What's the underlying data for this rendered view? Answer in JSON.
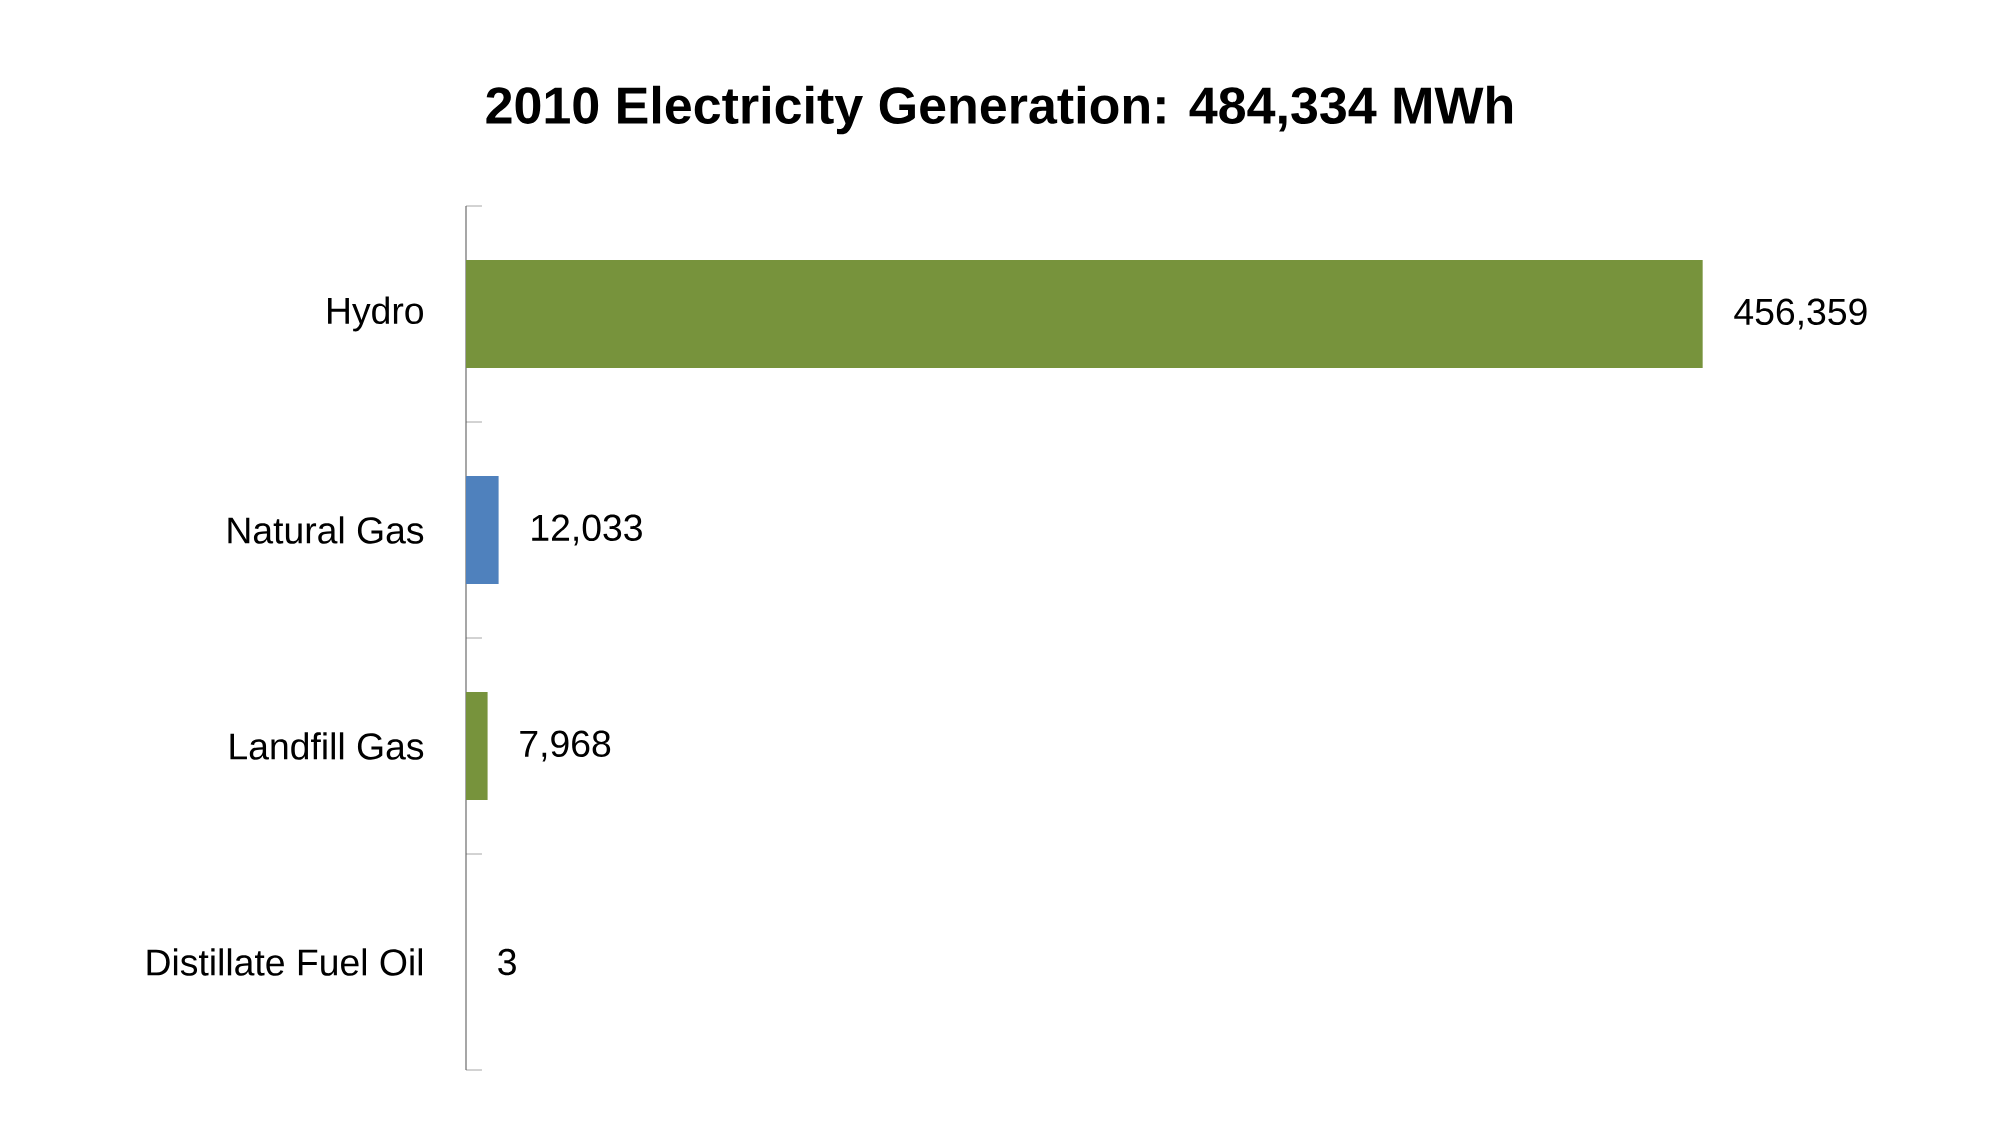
{
  "chart_data": {
    "type": "bar",
    "orientation": "horizontal",
    "title": "2010 Electricity Generation: 484,334  MWh",
    "categories": [
      "Hydro",
      "Natural Gas",
      "Landfill Gas",
      "Distillate Fuel Oil"
    ],
    "values": [
      456359,
      12033,
      7968,
      3
    ],
    "value_labels": [
      "456,359",
      "12,033",
      "7,968",
      "3"
    ],
    "colors": [
      "#77933c",
      "#4f81bd",
      "#77933c",
      "#77933c"
    ],
    "tick_labels": "y"
  }
}
